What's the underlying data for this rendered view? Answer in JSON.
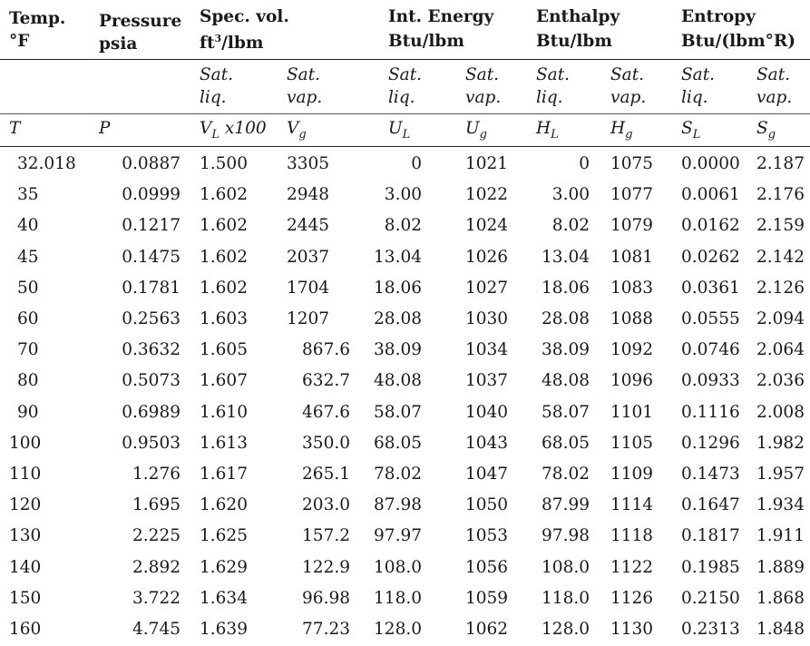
{
  "header": {
    "temp": {
      "line1": "Temp.",
      "line2": "°F"
    },
    "pressure": {
      "line1": "Pressure",
      "line2": "psia"
    },
    "specvol": {
      "line1": "Spec. vol.",
      "line2_a": "ft",
      "line2_sup": "3",
      "line2_b": "/lbm"
    },
    "energy": {
      "line1": "Int. Energy",
      "line2": "Btu/lbm"
    },
    "enthalpy": {
      "line1": "Enthalpy",
      "line2": "Btu/lbm"
    },
    "entropy": {
      "line1": "Entropy",
      "line2": "Btu/(lbm°R)"
    }
  },
  "subheader": {
    "sat_liq_1": "Sat.",
    "sat_liq_2": "liq.",
    "sat_vap_1": "Sat.",
    "sat_vap_2": "vap."
  },
  "symbols": {
    "T": "T",
    "P": "P",
    "VL": "V",
    "VL_sub": "L",
    "VL_suffix": " x100",
    "Vg": "V",
    "Vg_sub": "g",
    "UL": "U",
    "UL_sub": "L",
    "Ug": "U",
    "Ug_sub": "g",
    "HL": "H",
    "HL_sub": "L",
    "Hg": "H",
    "Hg_sub": "g",
    "SL": "S",
    "SL_sub": "L",
    "Sg": "S",
    "Sg_sub": "g"
  },
  "rows": [
    [
      "32.018",
      "0.0887",
      "1.500",
      "3305",
      "0",
      "1021",
      "0",
      "1075",
      "0.0000",
      "2.187"
    ],
    [
      "35",
      "0.0999",
      "1.602",
      "2948",
      "3.00",
      "1022",
      "3.00",
      "1077",
      "0.0061",
      "2.176"
    ],
    [
      "40",
      "0.1217",
      "1.602",
      "2445",
      "8.02",
      "1024",
      "8.02",
      "1079",
      "0.0162",
      "2.159"
    ],
    [
      "45",
      "0.1475",
      "1.602",
      "2037",
      "13.04",
      "1026",
      "13.04",
      "1081",
      "0.0262",
      "2.142"
    ],
    [
      "50",
      "0.1781",
      "1.602",
      "1704",
      "18.06",
      "1027",
      "18.06",
      "1083",
      "0.0361",
      "2.126"
    ],
    [
      "60",
      "0.2563",
      "1.603",
      "1207",
      "28.08",
      "1030",
      "28.08",
      "1088",
      "0.0555",
      "2.094"
    ],
    [
      "70",
      "0.3632",
      "1.605",
      "867.6",
      "38.09",
      "1034",
      "38.09",
      "1092",
      "0.0746",
      "2.064"
    ],
    [
      "80",
      "0.5073",
      "1.607",
      "632.7",
      "48.08",
      "1037",
      "48.08",
      "1096",
      "0.0933",
      "2.036"
    ],
    [
      "90",
      "0.6989",
      "1.610",
      "467.6",
      "58.07",
      "1040",
      "58.07",
      "1101",
      "0.1116",
      "2.008"
    ],
    [
      "100",
      "0.9503",
      "1.613",
      "350.0",
      "68.05",
      "1043",
      "68.05",
      "1105",
      "0.1296",
      "1.982"
    ],
    [
      "110",
      "1.276",
      "1.617",
      "265.1",
      "78.02",
      "1047",
      "78.02",
      "1109",
      "0.1473",
      "1.957"
    ],
    [
      "120",
      "1.695",
      "1.620",
      "203.0",
      "87.98",
      "1050",
      "87.99",
      "1114",
      "0.1647",
      "1.934"
    ],
    [
      "130",
      "2.225",
      "1.625",
      "157.2",
      "97.97",
      "1053",
      "97.98",
      "1118",
      "0.1817",
      "1.911"
    ],
    [
      "140",
      "2.892",
      "1.629",
      "122.9",
      "108.0",
      "1056",
      "108.0",
      "1122",
      "0.1985",
      "1.889"
    ],
    [
      "150",
      "3.722",
      "1.634",
      "96.98",
      "118.0",
      "1059",
      "118.0",
      "1126",
      "0.2150",
      "1.868"
    ],
    [
      "160",
      "4.745",
      "1.639",
      "77.23",
      "128.0",
      "1062",
      "128.0",
      "1130",
      "0.2313",
      "1.848"
    ]
  ]
}
